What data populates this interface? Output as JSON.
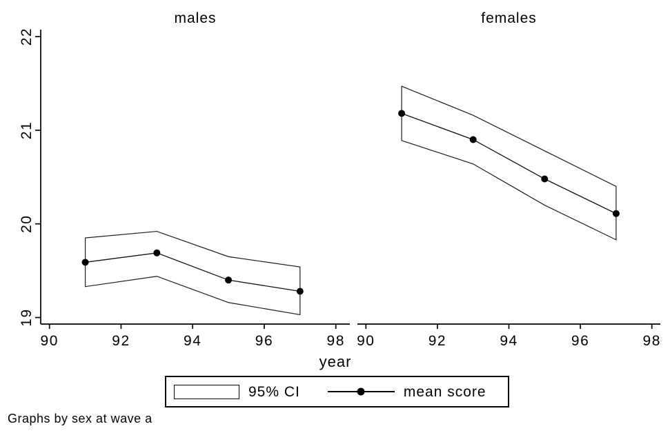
{
  "colors": {
    "foreground": "#000000",
    "background": "#ffffff"
  },
  "chart_data": {
    "type": "line",
    "title": "",
    "xlabel": "year",
    "ylabel": "",
    "x_ticks": [
      90,
      92,
      94,
      96,
      98
    ],
    "y_ticks": [
      19,
      20,
      21,
      22
    ],
    "xlim": [
      90,
      98
    ],
    "ylim": [
      19,
      22
    ],
    "grid": false,
    "marker": "filled-circle",
    "legend_position": "bottom-center",
    "panels": [
      {
        "title": "males",
        "x": [
          91,
          93,
          95,
          97
        ],
        "series": [
          {
            "name": "mean score",
            "values": [
              19.59,
              19.69,
              19.4,
              19.28
            ]
          },
          {
            "name": "95% CI upper",
            "values": [
              19.85,
              19.92,
              19.65,
              19.54
            ]
          },
          {
            "name": "95% CI lower",
            "values": [
              19.33,
              19.44,
              19.16,
              19.03
            ]
          }
        ]
      },
      {
        "title": "females",
        "x": [
          91,
          93,
          95,
          97
        ],
        "series": [
          {
            "name": "mean score",
            "values": [
              21.18,
              20.9,
              20.48,
              20.11
            ]
          },
          {
            "name": "95% CI upper",
            "values": [
              21.47,
              21.16,
              20.78,
              20.4
            ]
          },
          {
            "name": "95% CI lower",
            "values": [
              20.89,
              20.64,
              20.2,
              19.83
            ]
          }
        ]
      }
    ],
    "legend": {
      "items": [
        {
          "swatch": "rectangle",
          "label": "95% CI"
        },
        {
          "swatch": "line-with-marker",
          "label": "mean score"
        }
      ]
    },
    "caption": "Graphs by sex at wave a"
  }
}
